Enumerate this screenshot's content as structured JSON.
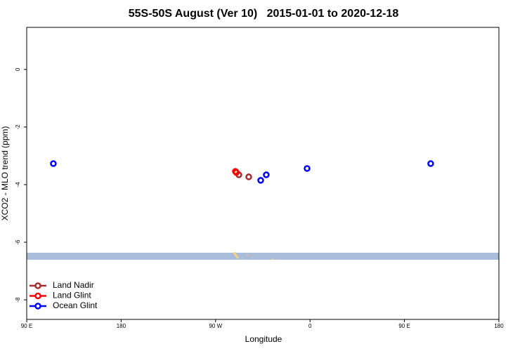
{
  "chart_data": {
    "type": "scatter",
    "title": "55S-50S August (Ver 10)   2015-01-01 to 2020-12-18",
    "xlabel": "Longitude",
    "ylabel": "XCO2 - MLO trend (ppm)",
    "xlim": [
      90,
      540
    ],
    "xticks": [
      {
        "value": 90,
        "label": "90 E"
      },
      180,
      {
        "value": 270,
        "label": "90 W"
      },
      {
        "value": 360,
        "label": "0"
      },
      {
        "value": 450,
        "label": "90 E"
      },
      {
        "value": 540,
        "label": "180"
      }
    ],
    "ylim": [
      -8.68,
      1.46
    ],
    "yticks": [
      0,
      -2,
      -4,
      -6,
      -8
    ],
    "legend": "bottom-left",
    "series": [
      {
        "name": "Land Nadir",
        "color": "#a52a2a",
        "x": [
          292.2,
          301.6
        ],
        "values": [
          -3.66,
          -3.73
        ]
      },
      {
        "name": "Land Glint",
        "color": "#ff0000",
        "x": [
          288.9,
          289.8
        ],
        "values": [
          -3.54,
          -3.58
        ]
      },
      {
        "name": "Ocean Glint",
        "color": "#0000ff",
        "x": [
          115.4,
          313.0,
          318.3,
          357.2,
          475.0
        ],
        "values": [
          -3.27,
          -3.85,
          -3.66,
          -3.44,
          -3.27
        ]
      }
    ]
  }
}
